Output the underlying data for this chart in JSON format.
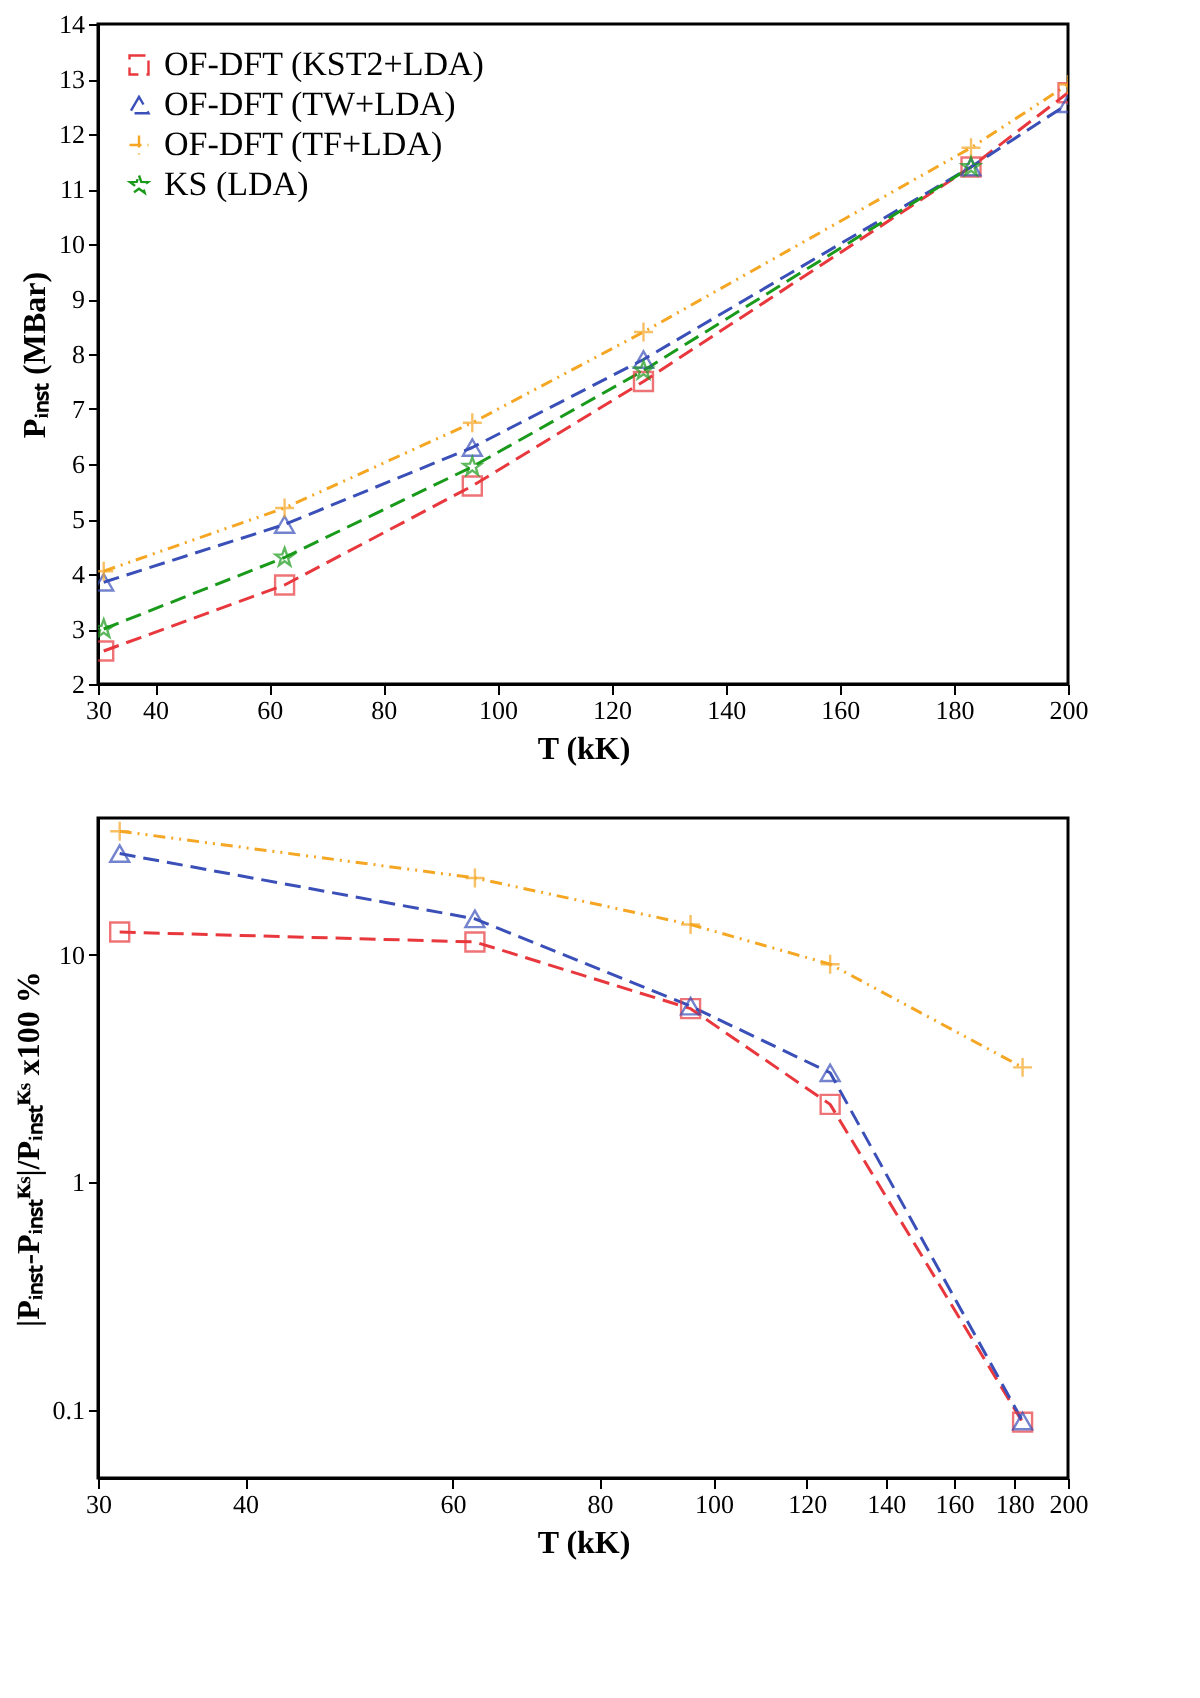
{
  "chart_data": [
    {
      "type": "line",
      "xlabel": "T (kK)",
      "ylabel": "Pᵢₙₛₜ (MBar)",
      "xlim": [
        30,
        200
      ],
      "ylim": [
        2,
        14
      ],
      "xticks": [
        30,
        40,
        60,
        80,
        100,
        120,
        140,
        160,
        180,
        200
      ],
      "yticks": [
        2,
        3,
        4,
        5,
        6,
        7,
        8,
        9,
        10,
        11,
        12,
        13,
        14
      ],
      "grid": false,
      "legend": "top left",
      "series": [
        {
          "name": "OF-DFT (KST2+LDA)",
          "color": "#e8383d",
          "marker": "square",
          "line_style": "dashed",
          "x": [
            31,
            62.7,
            95.6,
            125.6,
            183,
            200
          ],
          "values": [
            2.6,
            3.8,
            5.6,
            7.5,
            11.4,
            12.75
          ]
        },
        {
          "name": "OF-DFT (TW+LDA)",
          "color": "#3a4fb8",
          "marker": "triangle",
          "line_style": "dashed",
          "x": [
            31,
            62.7,
            95.6,
            125.6,
            183,
            200
          ],
          "values": [
            3.85,
            4.9,
            6.3,
            7.9,
            11.4,
            12.55
          ]
        },
        {
          "name": "OF-DFT (TF+LDA)",
          "color": "#f5a623",
          "marker": "cross",
          "line_style": "dotted",
          "x": [
            31,
            62.7,
            95.6,
            125.6,
            183,
            200
          ],
          "values": [
            4.05,
            5.2,
            6.75,
            8.4,
            11.75,
            12.9
          ]
        },
        {
          "name": "KS (LDA)",
          "color": "#1a9a1a",
          "marker": "star",
          "line_style": "dashed",
          "x": [
            31,
            62.7,
            95.6,
            125.6,
            183
          ],
          "values": [
            3.0,
            4.3,
            5.95,
            7.7,
            11.4
          ]
        }
      ]
    },
    {
      "type": "line",
      "xlabel": "T (kK)",
      "ylabel": "|Pᵢₙₛₜ-Pᵢₙₛₜᴷˢ|/Pᵢₙₛₜᴷˢ x100 %",
      "log": "xy",
      "xlim": [
        30,
        200
      ],
      "ylim": [
        0.05,
        40
      ],
      "xticks": [
        30,
        40,
        60,
        80,
        100,
        120,
        140,
        160,
        180,
        200
      ],
      "yticks": [
        0.1,
        1,
        10
      ],
      "grid": false,
      "legend": "bottom left",
      "series": [
        {
          "name": "OF-DFT (KST2+LDA)",
          "color": "#e8383d",
          "marker": "square",
          "line_style": "dashed",
          "x": [
            31.3,
            62.7,
            95.6,
            125.6,
            183
          ],
          "values": [
            12.6,
            11.4,
            5.8,
            2.2,
            0.088
          ]
        },
        {
          "name": "OF-DFT (TW+LDA)",
          "color": "#3a4fb8",
          "marker": "triangle",
          "line_style": "dashed",
          "x": [
            31.3,
            62.7,
            95.6,
            125.6,
            183
          ],
          "values": [
            27.9,
            14.4,
            5.95,
            3.03,
            0.089
          ]
        },
        {
          "name": "OF-DFT (TF+LDA)",
          "color": "#f5a623",
          "marker": "cross",
          "line_style": "dotted",
          "x": [
            31.3,
            62.7,
            95.6,
            125.6,
            183
          ],
          "values": [
            35,
            21.8,
            13.6,
            9.1,
            3.2
          ]
        }
      ]
    }
  ]
}
